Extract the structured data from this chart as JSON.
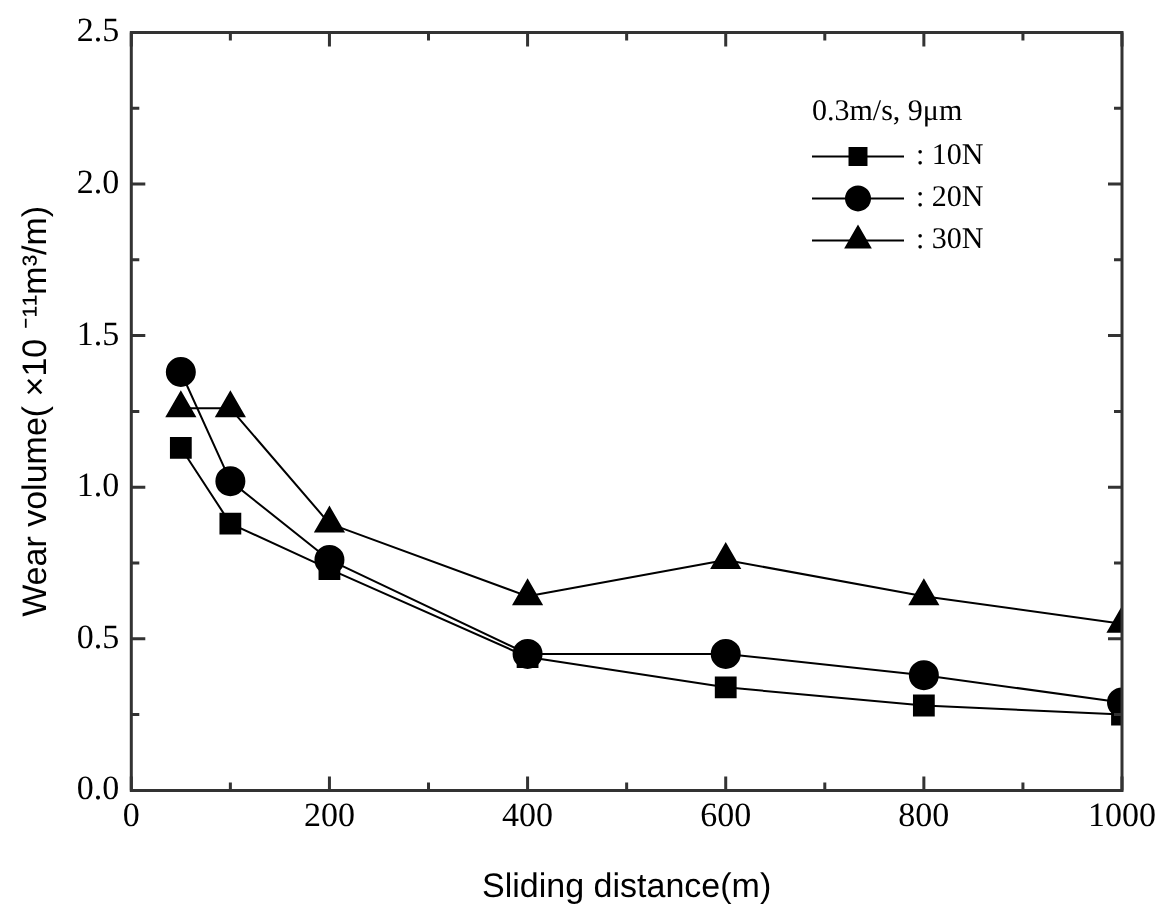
{
  "chart_data": {
    "type": "line",
    "xlabel": "Sliding distance(m)",
    "ylabel": "Wear volume( ×10 ⁻¹¹m³/m)",
    "legend_title": "0.3m/s, 9μm",
    "legend": "top right",
    "grid": false,
    "x": [
      50,
      100,
      200,
      400,
      600,
      800,
      1000
    ],
    "xlim": [
      0,
      1000
    ],
    "xticks": [
      0,
      {
        "value": 100,
        "label": null
      },
      200,
      {
        "value": 300,
        "label": null
      },
      400,
      {
        "value": 500,
        "label": null
      },
      600,
      {
        "value": 700,
        "label": null
      },
      800,
      {
        "value": 900,
        "label": null
      },
      1000
    ],
    "ylim": [
      0,
      2.5
    ],
    "yticks": [
      {
        "value": 0,
        "label": "0.0"
      },
      {
        "value": 0.25,
        "label": null
      },
      {
        "value": 0.5,
        "label": "0.5"
      },
      {
        "value": 0.75,
        "label": null
      },
      {
        "value": 1,
        "label": "1.0"
      },
      {
        "value": 1.25,
        "label": null
      },
      {
        "value": 1.5,
        "label": "1.5"
      },
      {
        "value": 1.75,
        "label": null
      },
      {
        "value": 2,
        "label": "2.0"
      },
      {
        "value": 2.25,
        "label": null
      },
      {
        "value": 2.5,
        "label": "2.5"
      }
    ],
    "series": [
      {
        "name": ": 10N",
        "color": "#000000",
        "marker": "square",
        "values": [
          1.13,
          0.88,
          0.73,
          0.44,
          0.34,
          0.28,
          0.25
        ]
      },
      {
        "name": ": 20N",
        "color": "#000000",
        "marker": "circle",
        "values": [
          1.38,
          1.02,
          0.76,
          0.45,
          0.45,
          0.38,
          0.29
        ]
      },
      {
        "name": ": 30N",
        "color": "#000000",
        "marker": "triangle",
        "values": [
          1.26,
          1.26,
          0.88,
          0.64,
          0.76,
          0.64,
          0.55
        ]
      }
    ]
  }
}
